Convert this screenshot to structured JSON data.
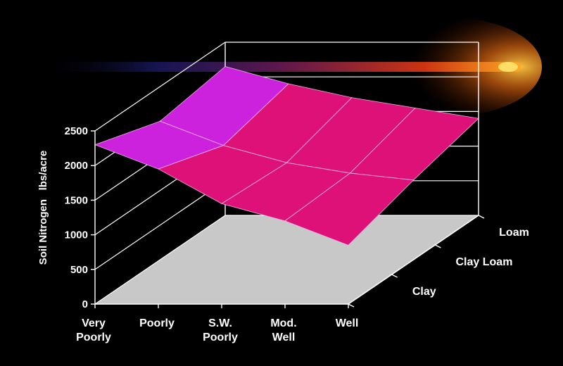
{
  "chart_data": {
    "type": "surface3d",
    "title": "",
    "ylabel": "Soil Nitrogen   lbs/acre",
    "ylim": [
      0,
      2500
    ],
    "yticks": [
      "0",
      "500",
      "1000",
      "1500",
      "2000",
      "2500"
    ],
    "x_categories": [
      [
        "Very",
        "Poorly"
      ],
      [
        "Poorly"
      ],
      [
        "S.W.",
        "Poorly"
      ],
      [
        "Mod.",
        "Well"
      ],
      [
        "Well"
      ]
    ],
    "depth_categories": [
      "Clay",
      "Clay Loam",
      "Loam"
    ],
    "grid": true,
    "surface_values": {
      "Loam": [
        2150,
        1900,
        1700,
        1550,
        1400
      ],
      "Clay Loam": [
        2000,
        1650,
        1400,
        1250,
        1150
      ],
      "Clay": [
        2300,
        1950,
        1450,
        1200,
        850
      ]
    },
    "colors": {
      "background": "#000000",
      "floor": "#c8c8c8",
      "high": "#cc22dd",
      "mid": "#dd1177",
      "low": "#ff9933",
      "grid": "#ffffff"
    }
  }
}
